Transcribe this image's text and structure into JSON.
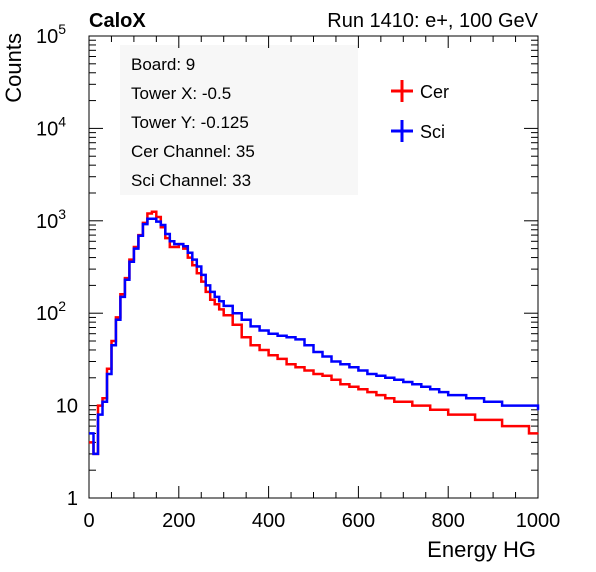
{
  "header": {
    "left_label": "CaloX",
    "run_label": "Run 1410: e+, 100 GeV"
  },
  "info_box": {
    "lines": [
      "Board: 9",
      "Tower X: -0.5",
      "Tower Y: -0.125",
      "Cer Channel: 35",
      "Sci Channel: 33"
    ]
  },
  "legend": {
    "placement": "top-right",
    "entries": [
      {
        "label": "Cer",
        "color": "#ff0000"
      },
      {
        "label": "Sci",
        "color": "#0000ff"
      }
    ]
  },
  "chart_data": {
    "type": "line",
    "xlabel": "Energy HG",
    "ylabel": "Counts",
    "xlim": [
      0,
      1000
    ],
    "ylim": [
      1,
      100000
    ],
    "yscale": "log",
    "x_ticks": [
      0,
      200,
      400,
      600,
      800,
      1000
    ],
    "y_ticks": [
      {
        "value": 1,
        "base": "1",
        "exp": ""
      },
      {
        "value": 10,
        "base": "10",
        "exp": ""
      },
      {
        "value": 100,
        "base": "10",
        "exp": "2"
      },
      {
        "value": 1000,
        "base": "10",
        "exp": "3"
      },
      {
        "value": 10000,
        "base": "10",
        "exp": "4"
      },
      {
        "value": 100000,
        "base": "10",
        "exp": "5"
      }
    ],
    "grid": false,
    "series": [
      {
        "name": "Cer",
        "color": "#ff0000",
        "x": [
          0,
          10,
          20,
          30,
          40,
          50,
          60,
          70,
          80,
          90,
          100,
          110,
          120,
          130,
          140,
          150,
          160,
          170,
          180,
          190,
          200,
          210,
          220,
          230,
          240,
          250,
          260,
          270,
          280,
          290,
          300,
          320,
          340,
          360,
          380,
          400,
          420,
          440,
          460,
          480,
          500,
          520,
          540,
          560,
          580,
          600,
          620,
          640,
          660,
          680,
          700,
          720,
          740,
          760,
          780,
          800,
          820,
          840,
          860,
          880,
          900,
          920,
          940,
          960,
          980,
          1000
        ],
        "values": [
          4,
          3,
          10,
          12,
          25,
          50,
          90,
          160,
          240,
          380,
          520,
          700,
          950,
          1200,
          1250,
          1100,
          850,
          650,
          520,
          520,
          560,
          500,
          400,
          330,
          270,
          220,
          170,
          140,
          125,
          110,
          95,
          75,
          55,
          45,
          40,
          35,
          32,
          28,
          26,
          24,
          22,
          21,
          19,
          17,
          16,
          15,
          14,
          13,
          12,
          11,
          11,
          10,
          10,
          9,
          9,
          8,
          8,
          8,
          7,
          7,
          7,
          6,
          6,
          6,
          5,
          5
        ]
      },
      {
        "name": "Sci",
        "color": "#0000ff",
        "x": [
          0,
          10,
          20,
          30,
          40,
          50,
          60,
          70,
          80,
          90,
          100,
          110,
          120,
          130,
          140,
          150,
          160,
          170,
          180,
          190,
          200,
          210,
          220,
          230,
          240,
          250,
          260,
          270,
          280,
          290,
          300,
          320,
          340,
          360,
          380,
          400,
          420,
          440,
          460,
          480,
          500,
          520,
          540,
          560,
          580,
          600,
          620,
          640,
          660,
          680,
          700,
          720,
          740,
          760,
          780,
          800,
          820,
          840,
          860,
          880,
          900,
          920,
          940,
          960,
          980,
          1000
        ],
        "values": [
          5,
          3,
          8,
          11,
          22,
          45,
          85,
          150,
          230,
          360,
          500,
          690,
          920,
          1050,
          1050,
          980,
          900,
          720,
          600,
          560,
          560,
          530,
          450,
          380,
          320,
          260,
          200,
          170,
          150,
          135,
          120,
          100,
          85,
          72,
          65,
          60,
          57,
          55,
          52,
          45,
          38,
          34,
          30,
          28,
          26,
          24,
          22,
          21,
          20,
          19,
          18,
          17,
          16,
          15,
          14,
          13,
          13,
          12,
          12,
          11,
          11,
          10,
          10,
          10,
          10,
          9
        ]
      }
    ]
  }
}
